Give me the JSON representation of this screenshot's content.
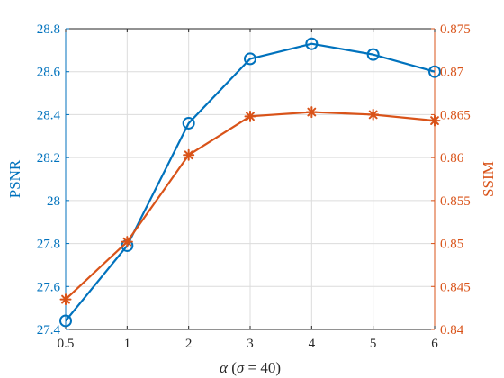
{
  "chart_data": {
    "type": "line",
    "x_tick_labels": [
      "0.5",
      "1",
      "2",
      "3",
      "4",
      "5",
      "6"
    ],
    "xlabel_parts": {
      "alpha": "α",
      "open": " (",
      "sigma": "σ",
      "rest": " = 40)"
    },
    "ylabel_left": "PSNR",
    "ylabel_right": "SSIM",
    "ylim_left": [
      27.4,
      28.8
    ],
    "ylim_right": [
      0.84,
      0.875
    ],
    "yticks_left": [
      "27.4",
      "27.6",
      "27.8",
      "28",
      "28.2",
      "28.4",
      "28.6",
      "28.8"
    ],
    "yticks_right": [
      "0.84",
      "0.845",
      "0.85",
      "0.855",
      "0.86",
      "0.865",
      "0.87",
      "0.875"
    ],
    "grid": true,
    "series": [
      {
        "axis": "left",
        "marker": "circle",
        "color": "#0072BD",
        "values": [
          27.44,
          27.79,
          28.36,
          28.66,
          28.73,
          28.68,
          28.6
        ]
      },
      {
        "axis": "right",
        "marker": "asterisk",
        "color": "#D95319",
        "values": [
          0.8435,
          0.8502,
          0.8603,
          0.8648,
          0.8653,
          0.865,
          0.8643
        ]
      }
    ]
  }
}
